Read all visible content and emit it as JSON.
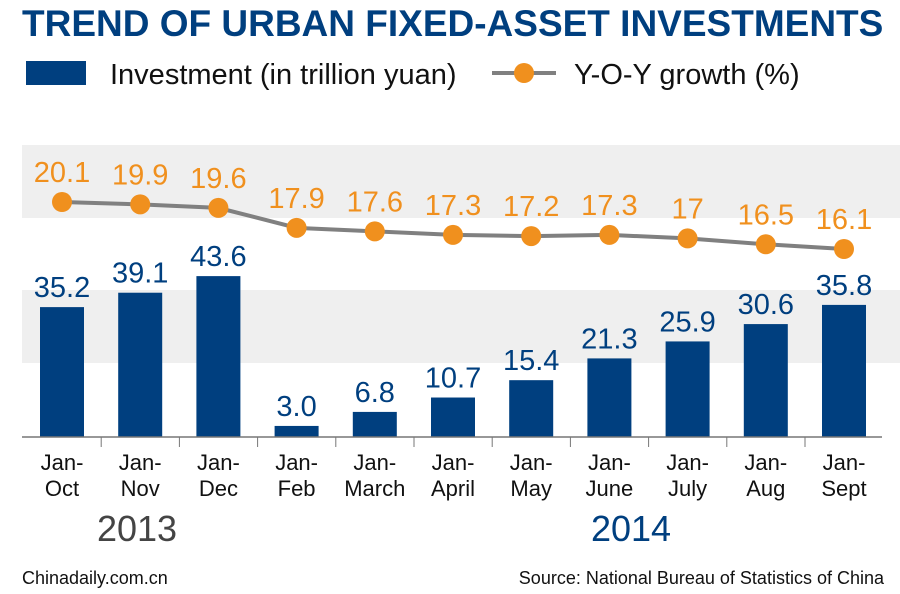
{
  "chart_data": {
    "type": "bar+line",
    "title": "TREND OF URBAN FIXED-ASSET INVESTMENTS",
    "categories": [
      "Jan-Oct",
      "Jan-Nov",
      "Jan-Dec",
      "Jan-Feb",
      "Jan-March",
      "Jan-April",
      "Jan-May",
      "Jan-June",
      "Jan-July",
      "Jan-Aug",
      "Jan-Sept"
    ],
    "category_lines": [
      [
        "Jan-",
        "Oct"
      ],
      [
        "Jan-",
        "Nov"
      ],
      [
        "Jan-",
        "Dec"
      ],
      [
        "Jan-",
        "Feb"
      ],
      [
        "Jan-",
        "March"
      ],
      [
        "Jan-",
        "April"
      ],
      [
        "Jan-",
        "May"
      ],
      [
        "Jan-",
        "June"
      ],
      [
        "Jan-",
        "July"
      ],
      [
        "Jan-",
        "Aug"
      ],
      [
        "Jan-",
        "Sept"
      ]
    ],
    "year_groups": [
      {
        "label": "2013",
        "color": "#444444"
      },
      {
        "label": "2014",
        "color": "#003f7f"
      }
    ],
    "series": [
      {
        "name": "Investment (in trillion yuan)",
        "type": "bar",
        "color": "#003f7f",
        "values": [
          35.2,
          39.1,
          43.6,
          3.0,
          6.8,
          10.7,
          15.4,
          21.3,
          25.9,
          30.6,
          35.8
        ],
        "labels": [
          "35.2",
          "39.1",
          "43.6",
          "3.0",
          "6.8",
          "10.7",
          "15.4",
          "21.3",
          "25.9",
          "30.6",
          "35.8"
        ]
      },
      {
        "name": "Y-O-Y growth (%)",
        "type": "line",
        "color": "#f0901e",
        "line_color": "#808080",
        "values": [
          20.1,
          19.9,
          19.6,
          17.9,
          17.6,
          17.3,
          17.2,
          17.3,
          17,
          16.5,
          16.1
        ],
        "labels": [
          "20.1",
          "19.9",
          "19.6",
          "17.9",
          "17.6",
          "17.3",
          "17.2",
          "17.3",
          "17",
          "16.5",
          "16.1"
        ]
      }
    ],
    "legend_position": "top",
    "grid": false
  },
  "footer": {
    "left": "Chinadaily.com.cn",
    "right": "Source: National Bureau of Statistics of China"
  }
}
